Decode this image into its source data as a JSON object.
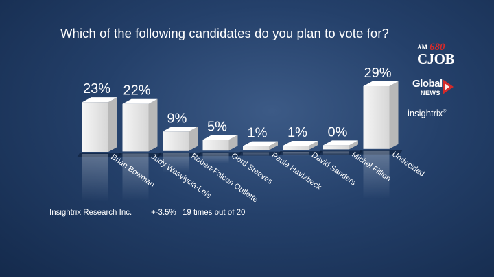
{
  "title": "Which of the following candidates do you plan to vote for?",
  "footer": {
    "source": "Insightrix Research Inc.",
    "margin_of_error": "+-3.5%",
    "confidence": "19 times out of 20"
  },
  "logos": {
    "cjob_am": "AM",
    "cjob_freq": "680",
    "cjob_name": "CJOB",
    "global_word": "Global",
    "global_news": "NEWS",
    "insightrix": "insightrix",
    "insightrix_mark": "®"
  },
  "colors": {
    "bar_face": "#e8e8e8",
    "bar_side": "#b8b8b8",
    "bar_top": "#ffffff",
    "global_red": "#d42a2a"
  },
  "chart_data": {
    "type": "bar",
    "title": "Which of the following candidates do you plan to vote for?",
    "categories": [
      "Brian Bowman",
      "Judy Wasylycia-Leis",
      "Robert-Falcon Oullette",
      "Gord Steeves",
      "Paula Havixbeck",
      "David Sanders",
      "Michel Fillion",
      "Undecided"
    ],
    "values": [
      23,
      22,
      9,
      5,
      1,
      1,
      0,
      29
    ],
    "value_labels": [
      "23%",
      "22%",
      "9%",
      "5%",
      "1%",
      "1%",
      "0%",
      "29%"
    ],
    "unit": "%",
    "ylim": [
      0,
      30
    ],
    "grid": false,
    "legend": "none"
  }
}
